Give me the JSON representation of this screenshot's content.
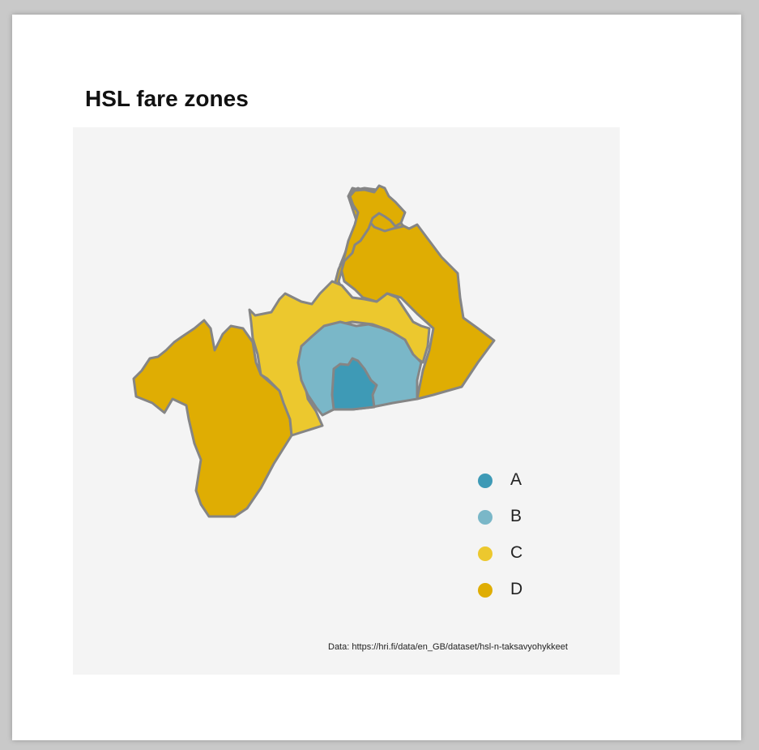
{
  "title": "HSL fare zones",
  "source": "Data: https://hri.fi/data/en_GB/dataset/hsl-n-taksavyohykkeet",
  "colors": {
    "background": "#f4f4f4",
    "border": "#858585",
    "A": "#3e9ab6",
    "B": "#7ab7c8",
    "C": "#ecc82e",
    "D": "#dfad03"
  },
  "legend": {
    "placement": "bottom-right",
    "items": [
      {
        "label": "A",
        "color": "#3e9ab6"
      },
      {
        "label": "B",
        "color": "#7ab7c8"
      },
      {
        "label": "C",
        "color": "#ecc82e"
      },
      {
        "label": "D",
        "color": "#dfad03"
      }
    ]
  },
  "map": {
    "zones": [
      "A",
      "B",
      "C",
      "D"
    ]
  }
}
